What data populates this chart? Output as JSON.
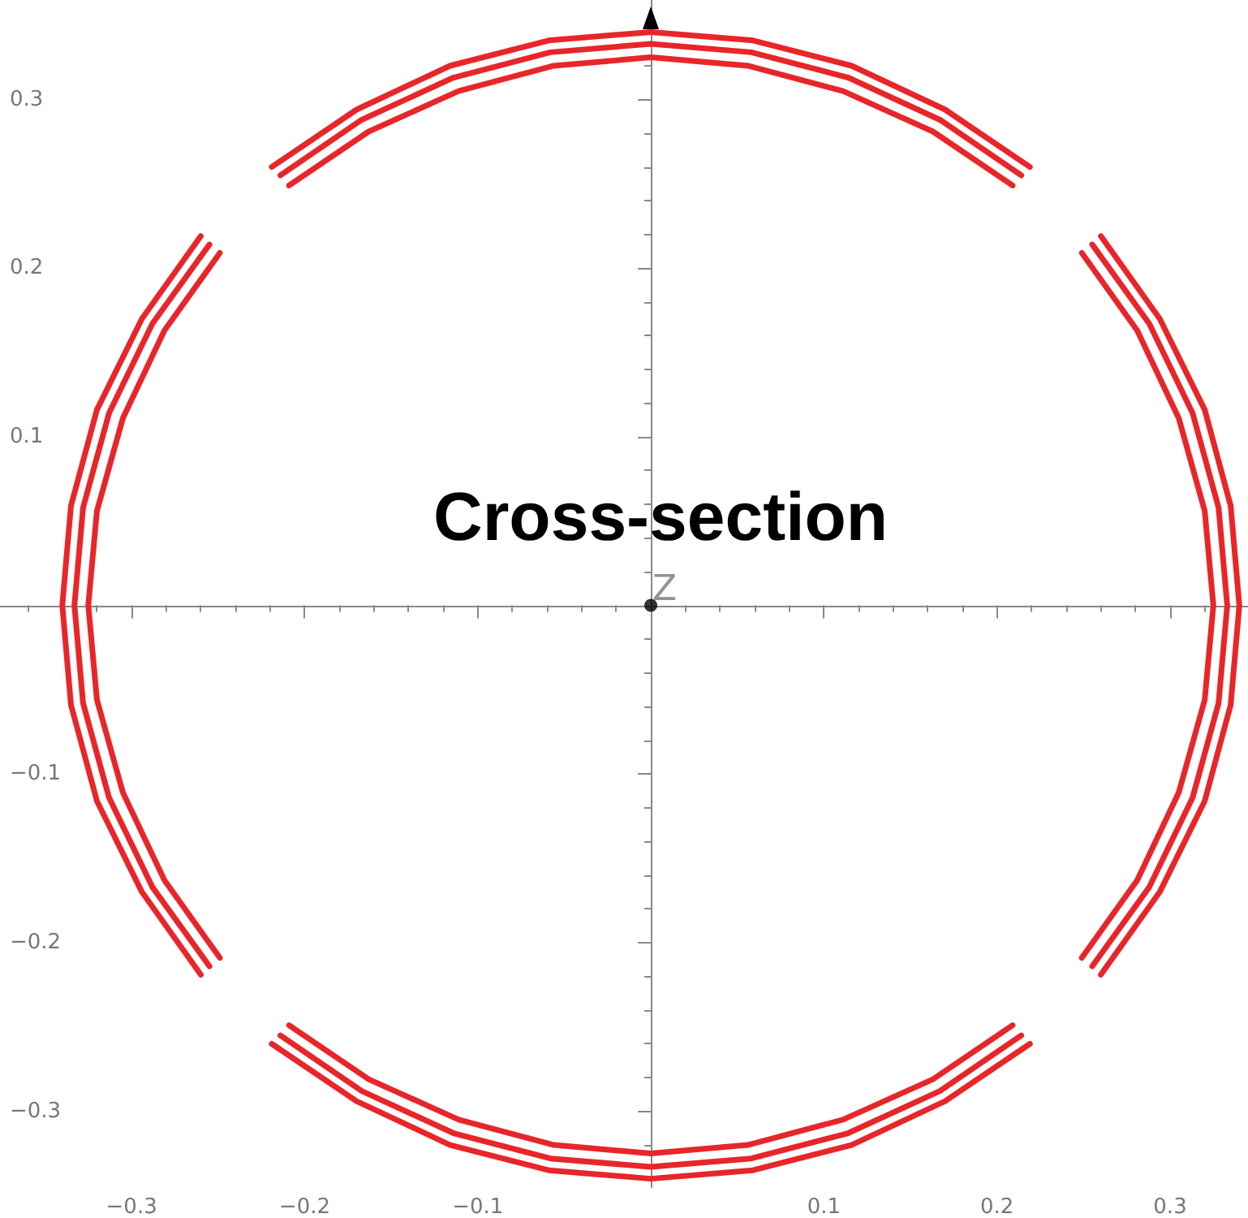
{
  "chart_data": {
    "type": "line",
    "title": "Cross-section",
    "annotations": [
      {
        "text": "Z",
        "x": 0,
        "y": 0
      }
    ],
    "xlim": [
      -0.376,
      0.345
    ],
    "ylim": [
      -0.345,
      0.359
    ],
    "xticks": [
      {
        "value": -0.3,
        "label": "−0.3"
      },
      {
        "value": -0.2,
        "label": "−0.2"
      },
      {
        "value": -0.1,
        "label": "−0.1"
      },
      0.1,
      0.2,
      0.3
    ],
    "yticks": [
      {
        "value": -0.3,
        "label": "−0.3"
      },
      {
        "value": -0.2,
        "label": "−0.2"
      },
      {
        "value": -0.1,
        "label": "−0.1"
      },
      0.1,
      0.2,
      0.3
    ],
    "grid": false,
    "marker": "none",
    "line_style": "solid",
    "series": [
      {
        "color": "#e8262a",
        "x": [
          0.34,
          0.335,
          0.32,
          0.294,
          0.26,
          null,
          0.219,
          0.17,
          0.116,
          0.059,
          0,
          -0.059,
          -0.116,
          -0.17,
          -0.219,
          null,
          -0.26,
          -0.294,
          -0.32,
          -0.335,
          -0.34,
          -0.335,
          -0.32,
          -0.294,
          -0.26,
          null,
          -0.219,
          -0.17,
          -0.116,
          -0.059,
          0,
          0.059,
          0.116,
          0.17,
          0.219,
          null,
          0.26,
          0.294,
          0.32,
          0.335,
          0.34
        ],
        "values": [
          0,
          0.059,
          0.116,
          0.17,
          0.219,
          null,
          0.26,
          0.294,
          0.32,
          0.335,
          0.34,
          0.335,
          0.32,
          0.294,
          0.26,
          null,
          0.219,
          0.17,
          0.116,
          0.059,
          0,
          -0.059,
          -0.116,
          -0.17,
          -0.219,
          null,
          -0.26,
          -0.294,
          -0.32,
          -0.335,
          -0.34,
          -0.335,
          -0.32,
          -0.294,
          -0.26,
          null,
          -0.219,
          -0.17,
          -0.116,
          -0.059,
          0
        ]
      },
      {
        "color": "#e8262a",
        "x": [
          0.333,
          0.328,
          0.313,
          0.288,
          0.255,
          null,
          0.214,
          0.167,
          0.114,
          0.058,
          0,
          -0.058,
          -0.114,
          -0.167,
          -0.214,
          null,
          -0.255,
          -0.288,
          -0.313,
          -0.328,
          -0.333,
          -0.328,
          -0.313,
          -0.288,
          -0.255,
          null,
          -0.214,
          -0.167,
          -0.114,
          -0.058,
          0,
          0.058,
          0.114,
          0.167,
          0.214,
          null,
          0.255,
          0.288,
          0.313,
          0.328,
          0.333
        ],
        "values": [
          0,
          0.058,
          0.114,
          0.167,
          0.214,
          null,
          0.255,
          0.288,
          0.313,
          0.328,
          0.333,
          0.328,
          0.313,
          0.288,
          0.255,
          null,
          0.214,
          0.167,
          0.114,
          0.058,
          0,
          -0.058,
          -0.114,
          -0.167,
          -0.214,
          null,
          -0.255,
          -0.288,
          -0.313,
          -0.328,
          -0.333,
          -0.328,
          -0.313,
          -0.288,
          -0.255,
          null,
          -0.214,
          -0.167,
          -0.114,
          -0.058,
          0
        ]
      },
      {
        "color": "#e8262a",
        "x": [
          0.325,
          0.32,
          0.305,
          0.281,
          0.249,
          null,
          0.209,
          0.163,
          0.111,
          0.056,
          0,
          -0.056,
          -0.111,
          -0.163,
          -0.209,
          null,
          -0.249,
          -0.281,
          -0.305,
          -0.32,
          -0.325,
          -0.32,
          -0.305,
          -0.281,
          -0.249,
          null,
          -0.209,
          -0.163,
          -0.111,
          -0.056,
          0,
          0.056,
          0.111,
          0.163,
          0.209,
          null,
          0.249,
          0.281,
          0.305,
          0.32,
          0.325
        ],
        "values": [
          0,
          0.056,
          0.111,
          0.163,
          0.209,
          null,
          0.249,
          0.281,
          0.305,
          0.32,
          0.325,
          0.32,
          0.305,
          0.281,
          0.249,
          null,
          0.209,
          0.163,
          0.111,
          0.056,
          0,
          -0.056,
          -0.111,
          -0.163,
          -0.209,
          null,
          -0.249,
          -0.281,
          -0.305,
          -0.32,
          -0.325,
          -0.32,
          -0.305,
          -0.281,
          -0.249,
          null,
          -0.209,
          -0.163,
          -0.111,
          -0.056,
          0
        ]
      },
      {
        "type": "scatter",
        "marker": "circle",
        "color": "#000000",
        "x": [
          0
        ],
        "values": [
          0
        ]
      }
    ]
  }
}
